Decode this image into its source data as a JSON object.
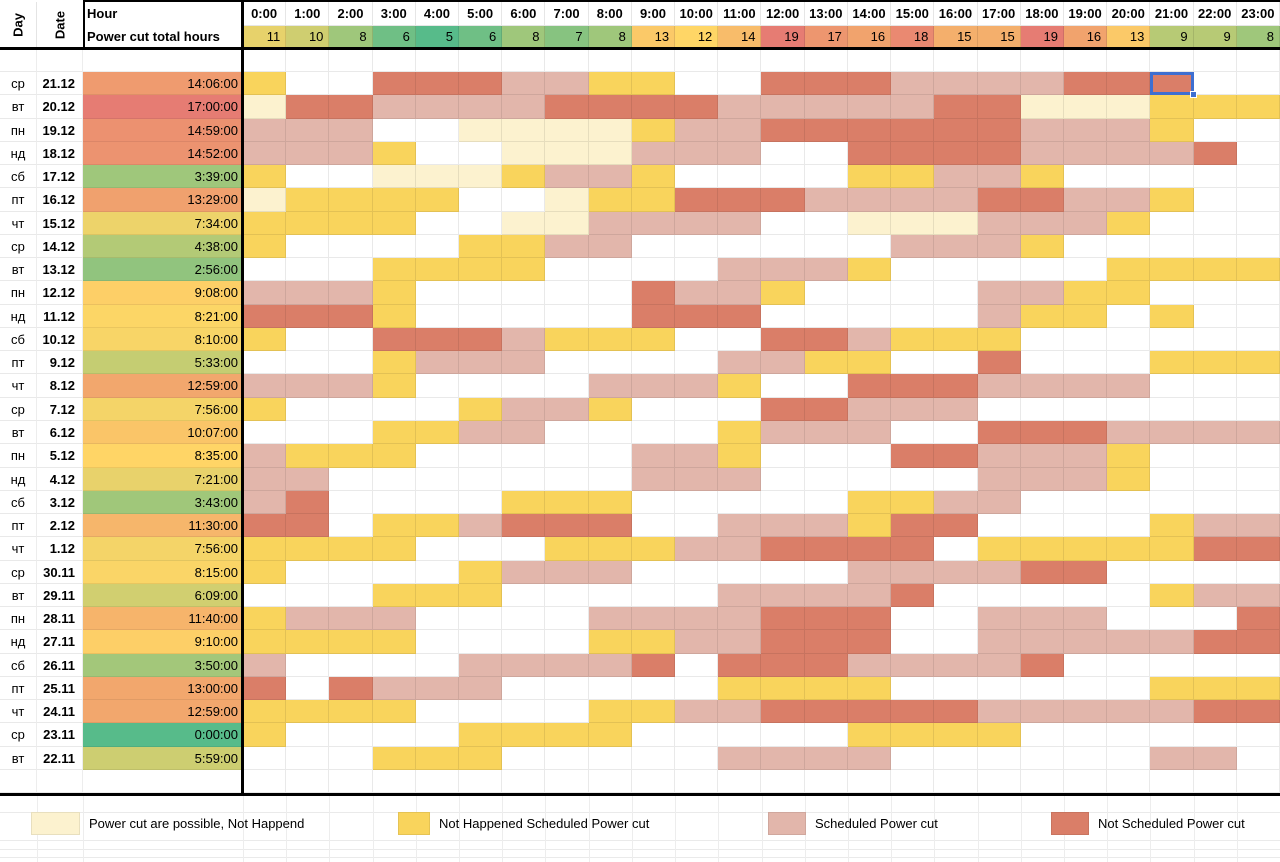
{
  "header": {
    "day_label": "Day",
    "date_label": "Date",
    "hour_label": "Hour",
    "total_label": "Power cut total hours",
    "hours": [
      "0:00",
      "1:00",
      "2:00",
      "3:00",
      "4:00",
      "5:00",
      "6:00",
      "7:00",
      "8:00",
      "9:00",
      "10:00",
      "11:00",
      "12:00",
      "13:00",
      "14:00",
      "15:00",
      "16:00",
      "17:00",
      "18:00",
      "19:00",
      "20:00",
      "21:00",
      "22:00",
      "23:00"
    ],
    "counts": [
      11,
      10,
      8,
      6,
      5,
      6,
      8,
      7,
      8,
      13,
      12,
      14,
      19,
      17,
      16,
      18,
      15,
      15,
      19,
      16,
      13,
      9,
      9,
      8
    ],
    "count_colors": [
      "#E7D26B",
      "#CFCE70",
      "#9FC77B",
      "#6FBF85",
      "#57BB8A",
      "#6FBF85",
      "#9FC77B",
      "#87C380",
      "#9FC77B",
      "#FBC968",
      "#FFD666",
      "#F8BC6A",
      "#E67C73",
      "#ED966F",
      "#F1A36D",
      "#EA8971",
      "#F4AF6C",
      "#F4AF6C",
      "#E67C73",
      "#F1A36D",
      "#FBC968",
      "#B7CA75",
      "#B7CA75",
      "#9FC77B"
    ]
  },
  "palette": {
    "W": "#FFFFFF",
    "C": "#FCF2CF",
    "Y": "#F9D45C",
    "P": "#E2B6AB",
    "R": "#DA7E68"
  },
  "selection": {
    "row": 0,
    "col": 21,
    "color": "#3E6FD1"
  },
  "rows": [
    {
      "day": "ср",
      "date": "21.12",
      "total": "14:06:00",
      "total_color": "#EF9B6F",
      "cells": "YWWRRRPPYYWWRRRPPPPRRRWW"
    },
    {
      "day": "вт",
      "date": "20.12",
      "total": "17:00:00",
      "total_color": "#E67C73",
      "cells": "CRRPPPPRRRRPPPPPRRCCCYYY"
    },
    {
      "day": "пн",
      "date": "19.12",
      "total": "14:59:00",
      "total_color": "#EC9170",
      "cells": "PPPWWCCCCYPPRRRRRRPPPYWW"
    },
    {
      "day": "нд",
      "date": "18.12",
      "total": "14:52:00",
      "total_color": "#EC9370",
      "cells": "PPPYWWCCCPPPWWRRRRPPPPRW"
    },
    {
      "day": "сб",
      "date": "17.12",
      "total": "3:39:00",
      "total_color": "#9FC77B",
      "cells": "YWWCCCYPPYWWWWYYPPYWWWWW"
    },
    {
      "day": "пт",
      "date": "16.12",
      "total": "13:29:00",
      "total_color": "#F0A16E",
      "cells": "CYYYYWWCYYRRRPPPPRRPPYWW"
    },
    {
      "day": "чт",
      "date": "15.12",
      "total": "7:34:00",
      "total_color": "#EDD36A",
      "cells": "YYYYWWCCPPPPWWCCCPPPYWWW"
    },
    {
      "day": "ср",
      "date": "14.12",
      "total": "4:38:00",
      "total_color": "#B3CA76",
      "cells": "YWWWWYYPPWWWWWWPPPYWWWWW"
    },
    {
      "day": "вт",
      "date": "13.12",
      "total": "2:56:00",
      "total_color": "#91C47E",
      "cells": "WWWYYYYWWWWPPPYWWWWWYYYY"
    },
    {
      "day": "пн",
      "date": "12.12",
      "total": "9:08:00",
      "total_color": "#FDCF67",
      "cells": "PPPYWWWWWRPPYWWWWPPYYWWW"
    },
    {
      "day": "нд",
      "date": "11.12",
      "total": "8:21:00",
      "total_color": "#FCD666",
      "cells": "RRRYWWWWWRRRWWWWWPYYWYWW"
    },
    {
      "day": "сб",
      "date": "10.12",
      "total": "8:10:00",
      "total_color": "#F8D567",
      "cells": "YWWRRRPYYYWWRRPYYYWWWWWW"
    },
    {
      "day": "пт",
      "date": "9.12",
      "total": "5:33:00",
      "total_color": "#C5CD72",
      "cells": "WWWYPPPWWWWPPYYWWRWWWYYY"
    },
    {
      "day": "чт",
      "date": "8.12",
      "total": "12:59:00",
      "total_color": "#F2A76D",
      "cells": "PPPYWWWWPPPYWWRRRPPPPWWW"
    },
    {
      "day": "ср",
      "date": "7.12",
      "total": "7:56:00",
      "total_color": "#F4D468",
      "cells": "YWWWWYPPYWWWRRPPPWWWWWWW"
    },
    {
      "day": "вт",
      "date": "6.12",
      "total": "10:07:00",
      "total_color": "#FAC568",
      "cells": "WWWYYPPWWWWYPPPWWRRRPPPP"
    },
    {
      "day": "пн",
      "date": "5.12",
      "total": "8:35:00",
      "total_color": "#FFD566",
      "cells": "PYYYWWWWWPPYWWWRRPPPYWWW"
    },
    {
      "day": "нд",
      "date": "4.12",
      "total": "7:21:00",
      "total_color": "#E8D26B",
      "cells": "PPWWWWWWWPPPWWWWWPPPYWWW"
    },
    {
      "day": "сб",
      "date": "3.12",
      "total": "3:43:00",
      "total_color": "#A0C77A",
      "cells": "PRWWWWYYYWWWWWYYPPWWWWWW"
    },
    {
      "day": "пт",
      "date": "2.12",
      "total": "11:30:00",
      "total_color": "#F6B66B",
      "cells": "RRWYYPRRRWWPPPYRRWWWWYPP"
    },
    {
      "day": "чт",
      "date": "1.12",
      "total": "7:56:00",
      "total_color": "#F4D468",
      "cells": "YYYYWWWYYYPPRRRRWYYYYYRR"
    },
    {
      "day": "ср",
      "date": "30.11",
      "total": "8:15:00",
      "total_color": "#FAD567",
      "cells": "YWWWWYPPPWWWWWPPPPRRWWWW"
    },
    {
      "day": "вт",
      "date": "29.11",
      "total": "6:09:00",
      "total_color": "#D1CF70",
      "cells": "WWWYYYWWWWWPPPPRWWWWWYPP"
    },
    {
      "day": "пн",
      "date": "28.11",
      "total": "11:40:00",
      "total_color": "#F6B46B",
      "cells": "YPPPWWWWPPPPRRRWWPPPWWWR"
    },
    {
      "day": "нд",
      "date": "27.11",
      "total": "9:10:00",
      "total_color": "#FDCF67",
      "cells": "YYYYWWWWYYPPRRRWWPPPPPRR"
    },
    {
      "day": "сб",
      "date": "26.11",
      "total": "3:50:00",
      "total_color": "#A3C77A",
      "cells": "PWWWWPPPPRWRRRPPPPRWWWWW"
    },
    {
      "day": "пт",
      "date": "25.11",
      "total": "13:00:00",
      "total_color": "#F2A76D",
      "cells": "RWRPPPWWWWWYYYYWWWWWWYYY"
    },
    {
      "day": "чт",
      "date": "24.11",
      "total": "12:59:00",
      "total_color": "#F2A76D",
      "cells": "YYYYWWWWYYPPRRRRRPPPPPRR"
    },
    {
      "day": "ср",
      "date": "23.11",
      "total": "0:00:00",
      "total_color": "#57BB8A",
      "cells": "YWWWWYYYYWWWWWYYYYWWWWWW"
    },
    {
      "day": "вт",
      "date": "22.11",
      "total": "5:59:00",
      "total_color": "#CDCE71",
      "cells": "WWWYYYWWWWWPPPPWWWWWWPPW"
    }
  ],
  "legend": [
    {
      "code": "C",
      "label": "Power cut are possible, Not Happend"
    },
    {
      "code": "Y",
      "label": "Not Happened Scheduled Power cut"
    },
    {
      "code": "P",
      "label": "Scheduled Power cut"
    },
    {
      "code": "R",
      "label": "Not Scheduled Power cut"
    }
  ]
}
